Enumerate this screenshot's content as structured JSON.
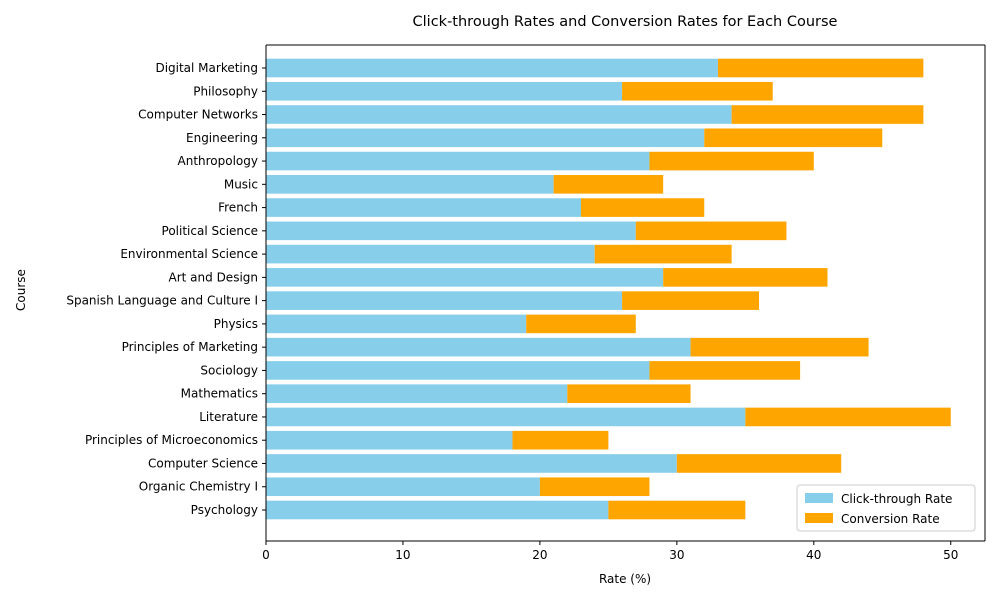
{
  "chart_data": {
    "type": "bar",
    "orientation": "horizontal",
    "stacked": true,
    "title": "Click-through Rates and Conversion Rates for Each Course",
    "xlabel": "Rate (%)",
    "ylabel": "Course",
    "xlim": [
      0,
      52.5
    ],
    "xticks": [
      0,
      10,
      20,
      30,
      40,
      50
    ],
    "grid": false,
    "legend_position": "bottom-right",
    "categories": [
      "Psychology",
      "Organic Chemistry I",
      "Computer Science",
      "Principles of Microeconomics",
      "Literature",
      "Mathematics",
      "Sociology",
      "Principles of Marketing",
      "Physics",
      "Spanish Language and Culture I",
      "Art and Design",
      "Environmental Science",
      "Political Science",
      "French",
      "Music",
      "Anthropology",
      "Engineering",
      "Computer Networks",
      "Philosophy",
      "Digital Marketing"
    ],
    "series": [
      {
        "name": "Click-through Rate",
        "color": "#87ceeb",
        "values": [
          25,
          20,
          30,
          18,
          35,
          22,
          28,
          31,
          19,
          26,
          29,
          24,
          27,
          23,
          21,
          28,
          32,
          34,
          26,
          33
        ]
      },
      {
        "name": "Conversion Rate",
        "color": "#ffa500",
        "values": [
          10,
          8,
          12,
          7,
          15,
          9,
          11,
          13,
          8,
          10,
          12,
          10,
          11,
          9,
          8,
          12,
          13,
          14,
          11,
          15
        ]
      }
    ]
  }
}
